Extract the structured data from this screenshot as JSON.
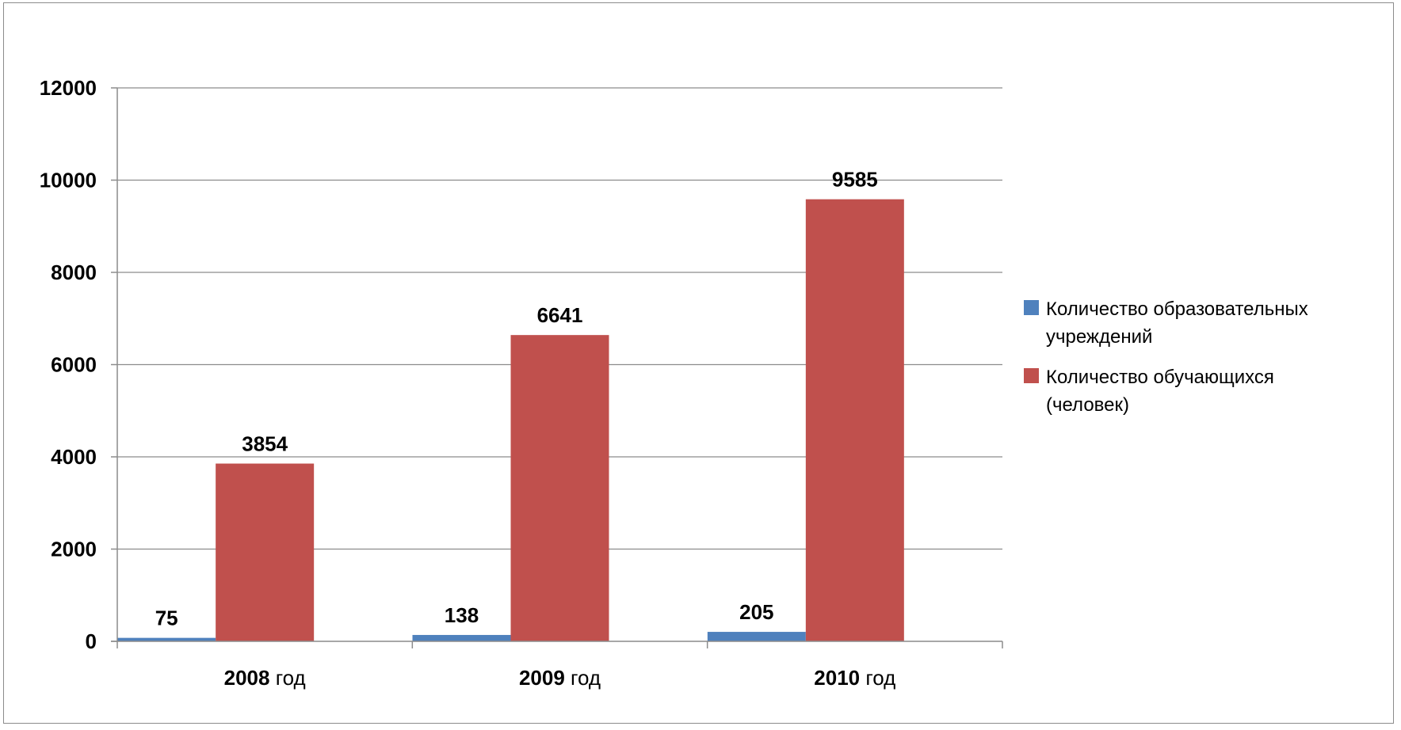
{
  "chart_data": {
    "type": "bar",
    "categories": [
      {
        "year": "2008",
        "suffix": " год"
      },
      {
        "year": "2009",
        "suffix": " год"
      },
      {
        "year": "2010",
        "suffix": " год"
      }
    ],
    "series": [
      {
        "name_lines": [
          "Количество образовательных",
          "учреждений"
        ],
        "color": "#4f81bd",
        "values": [
          75,
          138,
          205
        ]
      },
      {
        "name_lines": [
          "Количество обучающихся",
          "(человек)"
        ],
        "color": "#c0504d",
        "values": [
          3854,
          6641,
          9585
        ]
      }
    ],
    "yticks": [
      "0",
      "2000",
      "4000",
      "6000",
      "8000",
      "10000",
      "12000"
    ],
    "ylim": [
      0,
      12000
    ],
    "grid": true,
    "legend_position": "right"
  }
}
